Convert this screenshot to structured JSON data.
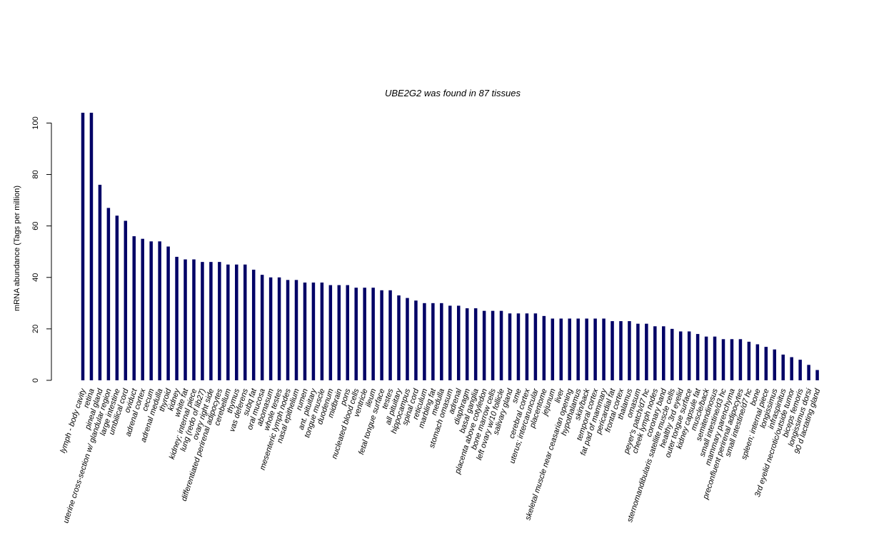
{
  "chart_data": {
    "type": "bar",
    "title": "UBE2G2  was found in  87  tissues",
    "xlabel": "",
    "ylabel": "mRNA abundance (Tags per million)",
    "ylim": [
      0,
      104
    ],
    "yticks": [
      0,
      20,
      40,
      60,
      80,
      100
    ],
    "grid": false,
    "bar_color": "#000066",
    "categories": [
      "lymph - body cavity",
      "retina",
      "pineal gland",
      "uterine cross-section w/ glandular region",
      "large intestine",
      "umbilical cord",
      "oviduct",
      "adrenal cortex",
      "cecum",
      "adrenal medulla",
      "thyroid",
      "kidney",
      "white fat",
      "kidney; internal piece",
      "lung (redo of lib27)",
      "ovary right side",
      "differentiated perirenal adipocytes",
      "cerebellum",
      "thymus",
      "vas deferens",
      "subq fat",
      "oral mucosa",
      "abomasum",
      "whole testes",
      "mesenteric lymph nodes",
      "nasal epithelium",
      "rumen",
      "ant. pituitary",
      "tongue muscle",
      "duodenum",
      "midbrain",
      "pons",
      "nucleated blood cells",
      "ventricle",
      "ileum",
      "fetal tongue surface",
      "testes",
      "all pituitary",
      "hippocampus",
      "spinal cord",
      "reticulum",
      "marbling fat",
      "medulla",
      "stomach omasum",
      "adrenal",
      "diaphragm",
      "basal ganglia",
      "placenta above cotyledon",
      "bone marrow cells",
      "left ovary w/10 follicle",
      "salivary gland",
      "sme",
      "cerebral cortex",
      "uterus; intercaruncular",
      "placentome",
      "jejunum",
      "liver",
      "skeletal muscle near ceasarian opening",
      "hypothalamus",
      "skin/back",
      "temporal cortex",
      "fat pad of mammary",
      "pericardial fat",
      "frontal cortex",
      "thalamus",
      "omasum",
      "peyer's patch/d7 hc",
      "cheek lymph nodes",
      "coronary band",
      "sternomandibularis satellite muscle cells",
      "healthy 3rd eyelid",
      "outer tongue surface",
      "kidney capsule fat",
      "muscle/back",
      "semitendinosus",
      "small intestine/d3 hc",
      "mammary parenchyma",
      "preconfluent perirenal adipocytes",
      "small intestine/d7 hc",
      "bone",
      "spleen; internal piece",
      "longissimus",
      "infraspinitus",
      "3rd eyelid necrotic/outside tumor",
      "biceps femoris",
      "longissimus dorsi",
      "90 d lactating gland"
    ],
    "values": [
      104,
      104,
      76,
      67,
      64,
      62,
      56,
      55,
      54,
      54,
      52,
      48,
      47,
      47,
      46,
      46,
      46,
      45,
      45,
      45,
      43,
      41,
      40,
      40,
      39,
      39,
      38,
      38,
      38,
      37,
      37,
      37,
      36,
      36,
      36,
      35,
      35,
      33,
      32,
      31,
      30,
      30,
      30,
      29,
      29,
      28,
      28,
      27,
      27,
      27,
      26,
      26,
      26,
      26,
      25,
      24,
      24,
      24,
      24,
      24,
      24,
      24,
      23,
      23,
      23,
      22,
      22,
      21,
      21,
      20,
      19,
      19,
      18,
      17,
      17,
      16,
      16,
      16,
      15,
      14,
      13,
      12,
      10,
      9,
      8,
      6,
      4
    ]
  }
}
